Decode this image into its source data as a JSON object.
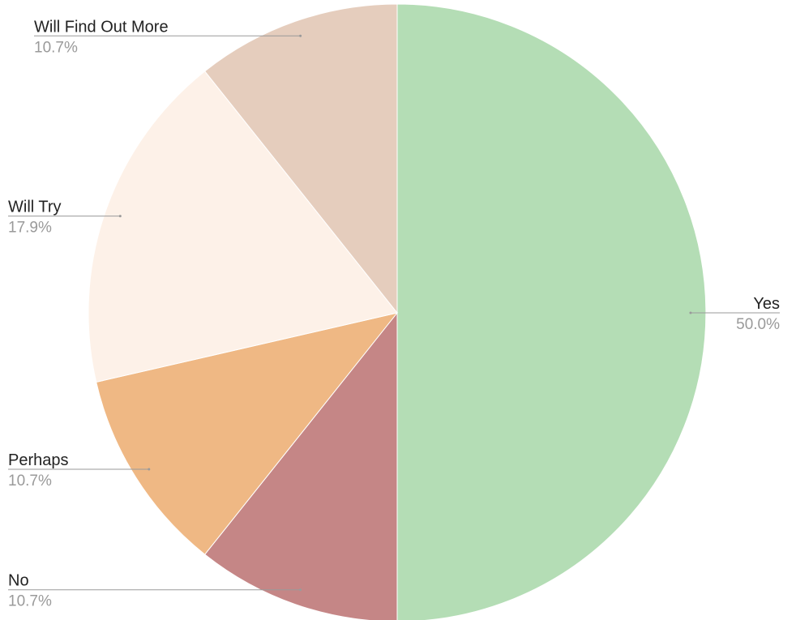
{
  "chart_data": {
    "type": "pie",
    "title": "",
    "start_angle_deg": 0,
    "direction": "clockwise",
    "slices": [
      {
        "label": "Yes",
        "value": 50.0,
        "percent_text": "50.0%",
        "color": "#b4ddb5",
        "label_side": "right"
      },
      {
        "label": "No",
        "value": 10.7,
        "percent_text": "10.7%",
        "color": "#c58686",
        "label_side": "left"
      },
      {
        "label": "Perhaps",
        "value": 10.7,
        "percent_text": "10.7%",
        "color": "#efb884",
        "label_side": "left"
      },
      {
        "label": "Will Try",
        "value": 17.9,
        "percent_text": "17.9%",
        "color": "#fdf1e8",
        "label_side": "left"
      },
      {
        "label": "Will Find Out More",
        "value": 10.7,
        "percent_text": "10.7%",
        "color": "#e5cdbd",
        "label_side": "left"
      }
    ]
  }
}
